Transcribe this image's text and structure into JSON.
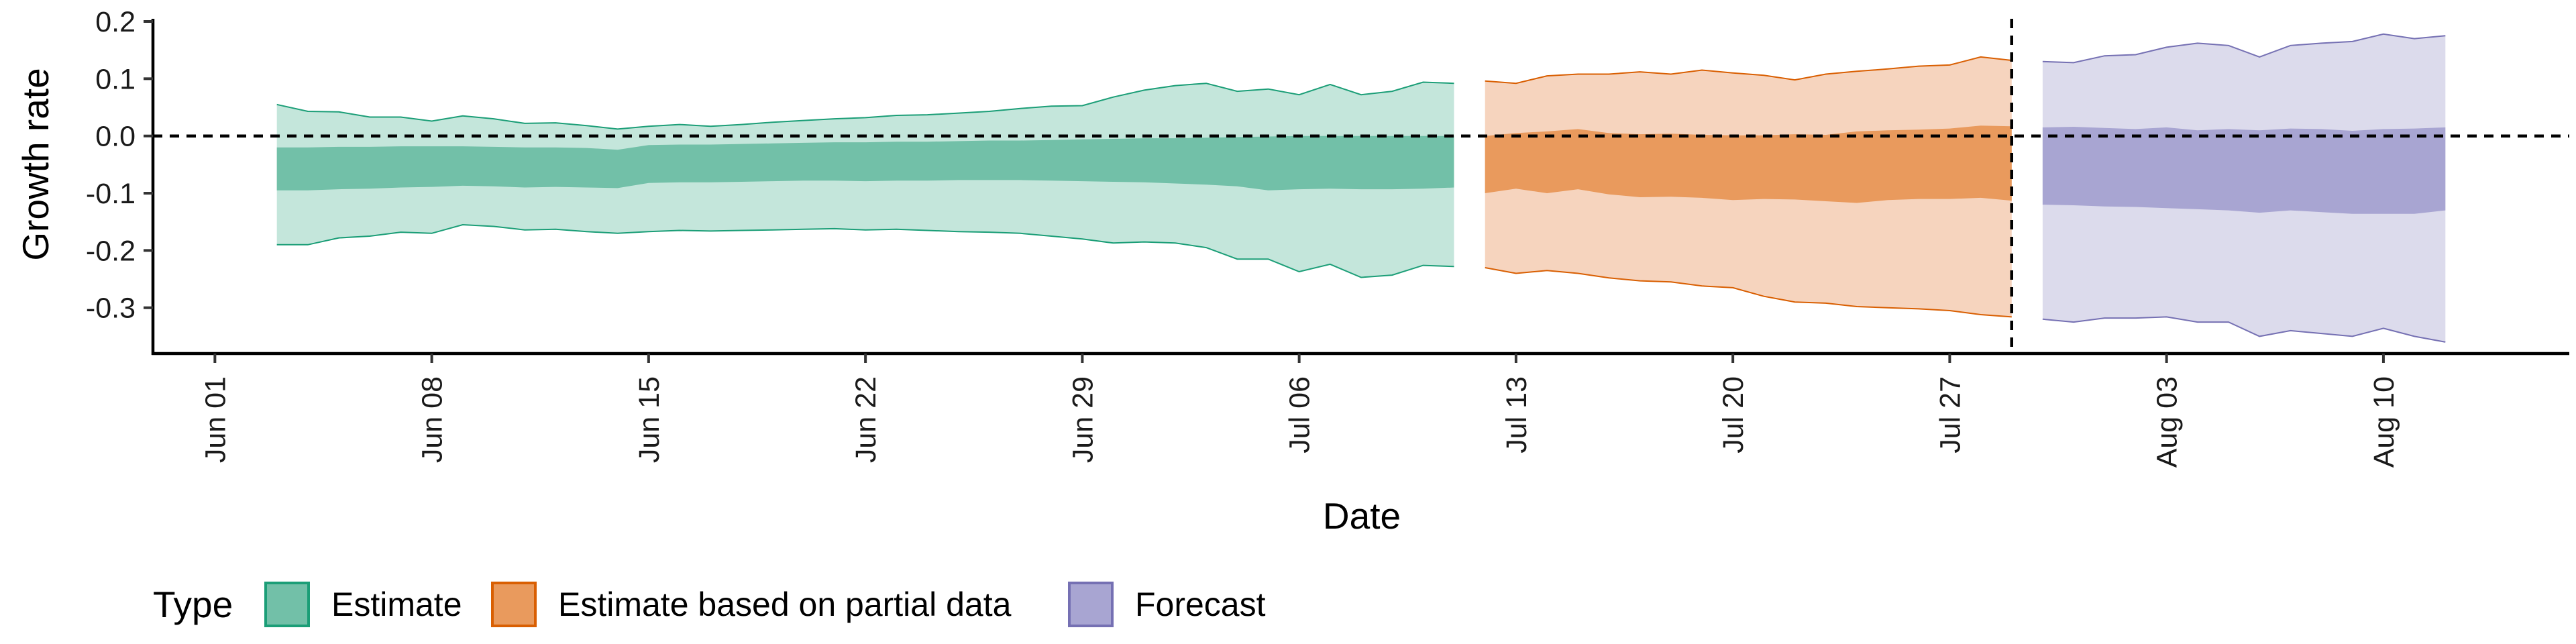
{
  "chart_data": {
    "type": "area",
    "xlabel": "Date",
    "ylabel": "Growth rate",
    "ylim": [
      -0.38,
      0.2
    ],
    "x_range": [
      "2021-05-30",
      "2021-08-16"
    ],
    "y_ticks": [
      {
        "value": 0.2,
        "label": "0.2"
      },
      {
        "value": 0.1,
        "label": "0.1"
      },
      {
        "value": 0.0,
        "label": "0.0"
      },
      {
        "value": -0.1,
        "label": "-0.1"
      },
      {
        "value": -0.2,
        "label": "-0.2"
      },
      {
        "value": -0.3,
        "label": "-0.3"
      }
    ],
    "x_ticks": [
      {
        "date": "2021-06-01",
        "label": "Jun 01"
      },
      {
        "date": "2021-06-08",
        "label": "Jun 08"
      },
      {
        "date": "2021-06-15",
        "label": "Jun 15"
      },
      {
        "date": "2021-06-22",
        "label": "Jun 22"
      },
      {
        "date": "2021-06-29",
        "label": "Jun 29"
      },
      {
        "date": "2021-07-06",
        "label": "Jul 06"
      },
      {
        "date": "2021-07-13",
        "label": "Jul 13"
      },
      {
        "date": "2021-07-20",
        "label": "Jul 20"
      },
      {
        "date": "2021-07-27",
        "label": "Jul 27"
      },
      {
        "date": "2021-08-03",
        "label": "Aug 03"
      },
      {
        "date": "2021-08-10",
        "label": "Aug 10"
      }
    ],
    "hline_y": 0.0,
    "vline_x": "2021-07-29",
    "legend": {
      "title": "Type",
      "placement": "bottom-left"
    },
    "series": [
      {
        "name": "Estimate",
        "fill_light": "#c4e6db",
        "fill_dark": "#72c0a8",
        "edge": "#1b9e77",
        "points": [
          {
            "x": "2021-06-03",
            "lo90": -0.19,
            "lo50": -0.095,
            "hi50": -0.02,
            "hi90": 0.055
          },
          {
            "x": "2021-06-04",
            "lo90": -0.19,
            "lo50": -0.095,
            "hi50": -0.02,
            "hi90": 0.043
          },
          {
            "x": "2021-06-05",
            "lo90": -0.178,
            "lo50": -0.093,
            "hi50": -0.019,
            "hi90": 0.042
          },
          {
            "x": "2021-06-06",
            "lo90": -0.175,
            "lo50": -0.092,
            "hi50": -0.019,
            "hi90": 0.033
          },
          {
            "x": "2021-06-07",
            "lo90": -0.168,
            "lo50": -0.09,
            "hi50": -0.018,
            "hi90": 0.033
          },
          {
            "x": "2021-06-08",
            "lo90": -0.17,
            "lo50": -0.089,
            "hi50": -0.018,
            "hi90": 0.026
          },
          {
            "x": "2021-06-09",
            "lo90": -0.155,
            "lo50": -0.087,
            "hi50": -0.018,
            "hi90": 0.035
          },
          {
            "x": "2021-06-10",
            "lo90": -0.158,
            "lo50": -0.088,
            "hi50": -0.019,
            "hi90": 0.03
          },
          {
            "x": "2021-06-11",
            "lo90": -0.164,
            "lo50": -0.09,
            "hi50": -0.02,
            "hi90": 0.022
          },
          {
            "x": "2021-06-12",
            "lo90": -0.163,
            "lo50": -0.089,
            "hi50": -0.02,
            "hi90": 0.023
          },
          {
            "x": "2021-06-13",
            "lo90": -0.167,
            "lo50": -0.09,
            "hi50": -0.021,
            "hi90": 0.018
          },
          {
            "x": "2021-06-14",
            "lo90": -0.17,
            "lo50": -0.091,
            "hi50": -0.024,
            "hi90": 0.012
          },
          {
            "x": "2021-06-15",
            "lo90": -0.167,
            "lo50": -0.082,
            "hi50": -0.016,
            "hi90": 0.017
          },
          {
            "x": "2021-06-16",
            "lo90": -0.165,
            "lo50": -0.081,
            "hi50": -0.015,
            "hi90": 0.02
          },
          {
            "x": "2021-06-17",
            "lo90": -0.166,
            "lo50": -0.081,
            "hi50": -0.015,
            "hi90": 0.017
          },
          {
            "x": "2021-06-18",
            "lo90": -0.165,
            "lo50": -0.08,
            "hi50": -0.014,
            "hi90": 0.02
          },
          {
            "x": "2021-06-19",
            "lo90": -0.164,
            "lo50": -0.079,
            "hi50": -0.013,
            "hi90": 0.024
          },
          {
            "x": "2021-06-20",
            "lo90": -0.163,
            "lo50": -0.078,
            "hi50": -0.012,
            "hi90": 0.027
          },
          {
            "x": "2021-06-21",
            "lo90": -0.162,
            "lo50": -0.078,
            "hi50": -0.011,
            "hi90": 0.03
          },
          {
            "x": "2021-06-22",
            "lo90": -0.164,
            "lo50": -0.079,
            "hi50": -0.011,
            "hi90": 0.032
          },
          {
            "x": "2021-06-23",
            "lo90": -0.163,
            "lo50": -0.078,
            "hi50": -0.01,
            "hi90": 0.036
          },
          {
            "x": "2021-06-24",
            "lo90": -0.165,
            "lo50": -0.078,
            "hi50": -0.01,
            "hi90": 0.037
          },
          {
            "x": "2021-06-25",
            "lo90": -0.167,
            "lo50": -0.077,
            "hi50": -0.009,
            "hi90": 0.04
          },
          {
            "x": "2021-06-26",
            "lo90": -0.168,
            "lo50": -0.077,
            "hi50": -0.008,
            "hi90": 0.043
          },
          {
            "x": "2021-06-27",
            "lo90": -0.17,
            "lo50": -0.077,
            "hi50": -0.008,
            "hi90": 0.048
          },
          {
            "x": "2021-06-28",
            "lo90": -0.175,
            "lo50": -0.078,
            "hi50": -0.007,
            "hi90": 0.052
          },
          {
            "x": "2021-06-29",
            "lo90": -0.18,
            "lo50": -0.079,
            "hi50": -0.006,
            "hi90": 0.053
          },
          {
            "x": "2021-06-30",
            "lo90": -0.187,
            "lo50": -0.08,
            "hi50": -0.005,
            "hi90": 0.068
          },
          {
            "x": "2021-07-01",
            "lo90": -0.185,
            "lo50": -0.081,
            "hi50": -0.004,
            "hi90": 0.08
          },
          {
            "x": "2021-07-02",
            "lo90": -0.187,
            "lo50": -0.083,
            "hi50": -0.004,
            "hi90": 0.088
          },
          {
            "x": "2021-07-03",
            "lo90": -0.195,
            "lo50": -0.085,
            "hi50": -0.003,
            "hi90": 0.092
          },
          {
            "x": "2021-07-04",
            "lo90": -0.215,
            "lo50": -0.088,
            "hi50": -0.002,
            "hi90": 0.078
          },
          {
            "x": "2021-07-05",
            "lo90": -0.215,
            "lo50": -0.095,
            "hi50": -0.001,
            "hi90": 0.082
          },
          {
            "x": "2021-07-06",
            "lo90": -0.237,
            "lo50": -0.093,
            "hi50": 0.0,
            "hi90": 0.072
          },
          {
            "x": "2021-07-07",
            "lo90": -0.224,
            "lo50": -0.092,
            "hi50": 0.0,
            "hi90": 0.09
          },
          {
            "x": "2021-07-08",
            "lo90": -0.247,
            "lo50": -0.093,
            "hi50": 0.0,
            "hi90": 0.072
          },
          {
            "x": "2021-07-09",
            "lo90": -0.243,
            "lo50": -0.093,
            "hi50": 0.0,
            "hi90": 0.078
          },
          {
            "x": "2021-07-10",
            "lo90": -0.226,
            "lo50": -0.092,
            "hi50": 0.0,
            "hi90": 0.094
          },
          {
            "x": "2021-07-11",
            "lo90": -0.228,
            "lo50": -0.09,
            "hi50": 0.0,
            "hi90": 0.092
          }
        ]
      },
      {
        "name": "Estimate based on partial data",
        "fill_light": "#f6d4be",
        "fill_dark": "#e99a5d",
        "edge": "#d95f02",
        "points": [
          {
            "x": "2021-07-12",
            "lo90": -0.23,
            "lo50": -0.1,
            "hi50": 0.0,
            "hi90": 0.096
          },
          {
            "x": "2021-07-13",
            "lo90": -0.24,
            "lo50": -0.092,
            "hi50": 0.005,
            "hi90": 0.092
          },
          {
            "x": "2021-07-14",
            "lo90": -0.235,
            "lo50": -0.1,
            "hi50": 0.008,
            "hi90": 0.105
          },
          {
            "x": "2021-07-15",
            "lo90": -0.24,
            "lo50": -0.093,
            "hi50": 0.012,
            "hi90": 0.108
          },
          {
            "x": "2021-07-16",
            "lo90": -0.248,
            "lo50": -0.102,
            "hi50": 0.005,
            "hi90": 0.108
          },
          {
            "x": "2021-07-17",
            "lo90": -0.253,
            "lo50": -0.107,
            "hi50": 0.003,
            "hi90": 0.112
          },
          {
            "x": "2021-07-18",
            "lo90": -0.255,
            "lo50": -0.106,
            "hi50": 0.004,
            "hi90": 0.108
          },
          {
            "x": "2021-07-19",
            "lo90": -0.262,
            "lo50": -0.108,
            "hi50": 0.002,
            "hi90": 0.115
          },
          {
            "x": "2021-07-20",
            "lo90": -0.265,
            "lo50": -0.112,
            "hi50": 0.001,
            "hi90": 0.11
          },
          {
            "x": "2021-07-21",
            "lo90": -0.28,
            "lo50": -0.11,
            "hi50": 0.001,
            "hi90": 0.106
          },
          {
            "x": "2021-07-22",
            "lo90": -0.29,
            "lo50": -0.111,
            "hi50": 0.003,
            "hi90": 0.098
          },
          {
            "x": "2021-07-23",
            "lo90": -0.292,
            "lo50": -0.114,
            "hi50": 0.002,
            "hi90": 0.108
          },
          {
            "x": "2021-07-24",
            "lo90": -0.298,
            "lo50": -0.117,
            "hi50": 0.008,
            "hi90": 0.113
          },
          {
            "x": "2021-07-25",
            "lo90": -0.3,
            "lo50": -0.112,
            "hi50": 0.01,
            "hi90": 0.117
          },
          {
            "x": "2021-07-26",
            "lo90": -0.302,
            "lo50": -0.11,
            "hi50": 0.011,
            "hi90": 0.122
          },
          {
            "x": "2021-07-27",
            "lo90": -0.305,
            "lo50": -0.11,
            "hi50": 0.013,
            "hi90": 0.124
          },
          {
            "x": "2021-07-28",
            "lo90": -0.312,
            "lo50": -0.108,
            "hi50": 0.018,
            "hi90": 0.138
          },
          {
            "x": "2021-07-29",
            "lo90": -0.316,
            "lo50": -0.113,
            "hi50": 0.017,
            "hi90": 0.132
          }
        ]
      },
      {
        "name": "Forecast",
        "fill_light": "#dcdbec",
        "fill_dark": "#a8a5d2",
        "edge": "#7570b3",
        "points": [
          {
            "x": "2021-07-30",
            "lo90": -0.32,
            "lo50": -0.12,
            "hi50": 0.015,
            "hi90": 0.13
          },
          {
            "x": "2021-07-31",
            "lo90": -0.325,
            "lo50": -0.121,
            "hi50": 0.016,
            "hi90": 0.128
          },
          {
            "x": "2021-08-01",
            "lo90": -0.318,
            "lo50": -0.123,
            "hi50": 0.014,
            "hi90": 0.14
          },
          {
            "x": "2021-08-02",
            "lo90": -0.318,
            "lo50": -0.124,
            "hi50": 0.012,
            "hi90": 0.142
          },
          {
            "x": "2021-08-03",
            "lo90": -0.316,
            "lo50": -0.126,
            "hi50": 0.015,
            "hi90": 0.155
          },
          {
            "x": "2021-08-04",
            "lo90": -0.325,
            "lo50": -0.128,
            "hi50": 0.01,
            "hi90": 0.162
          },
          {
            "x": "2021-08-05",
            "lo90": -0.325,
            "lo50": -0.13,
            "hi50": 0.012,
            "hi90": 0.158
          },
          {
            "x": "2021-08-06",
            "lo90": -0.35,
            "lo50": -0.134,
            "hi50": 0.01,
            "hi90": 0.138
          },
          {
            "x": "2021-08-07",
            "lo90": -0.34,
            "lo50": -0.13,
            "hi50": 0.013,
            "hi90": 0.158
          },
          {
            "x": "2021-08-08",
            "lo90": -0.345,
            "lo50": -0.133,
            "hi50": 0.012,
            "hi90": 0.162
          },
          {
            "x": "2021-08-09",
            "lo90": -0.35,
            "lo50": -0.136,
            "hi50": 0.009,
            "hi90": 0.165
          },
          {
            "x": "2021-08-10",
            "lo90": -0.336,
            "lo50": -0.136,
            "hi50": 0.012,
            "hi90": 0.178
          },
          {
            "x": "2021-08-11",
            "lo90": -0.35,
            "lo50": -0.136,
            "hi50": 0.013,
            "hi90": 0.17
          },
          {
            "x": "2021-08-12",
            "lo90": -0.36,
            "lo50": -0.13,
            "hi50": 0.015,
            "hi90": 0.175
          }
        ]
      }
    ]
  }
}
